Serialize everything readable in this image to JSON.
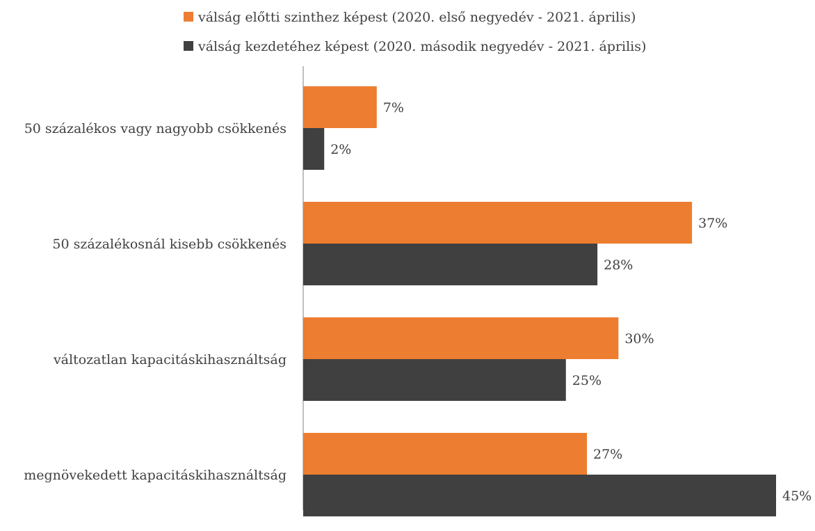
{
  "chart_data": {
    "type": "bar",
    "orientation": "horizontal",
    "title": "",
    "xlabel": "",
    "ylabel": "",
    "categories": [
      "50 százalékos vagy nagyobb csökkenés",
      "50 százalékosnál kisebb csökkenés",
      "változatlan kapacitáskihasználtság",
      "megnövekedett kapacitáskihasználtság"
    ],
    "series": [
      {
        "name": "válság előtti szinthez képest (2020. első negyedév - 2021. április)",
        "color": "#ED7D31",
        "values": [
          7,
          37,
          30,
          27
        ],
        "labels": [
          "7%",
          "37%",
          "30%",
          "27%"
        ]
      },
      {
        "name": "válság kezdetéhez képest (2020. második negyedév - 2021. április)",
        "color": "#404040",
        "values": [
          2,
          28,
          25,
          45
        ],
        "labels": [
          "2%",
          "28%",
          "25%",
          "45%"
        ]
      }
    ],
    "xlim": [
      0,
      45
    ],
    "unit": "%",
    "grid": false,
    "legend_position": "top"
  }
}
